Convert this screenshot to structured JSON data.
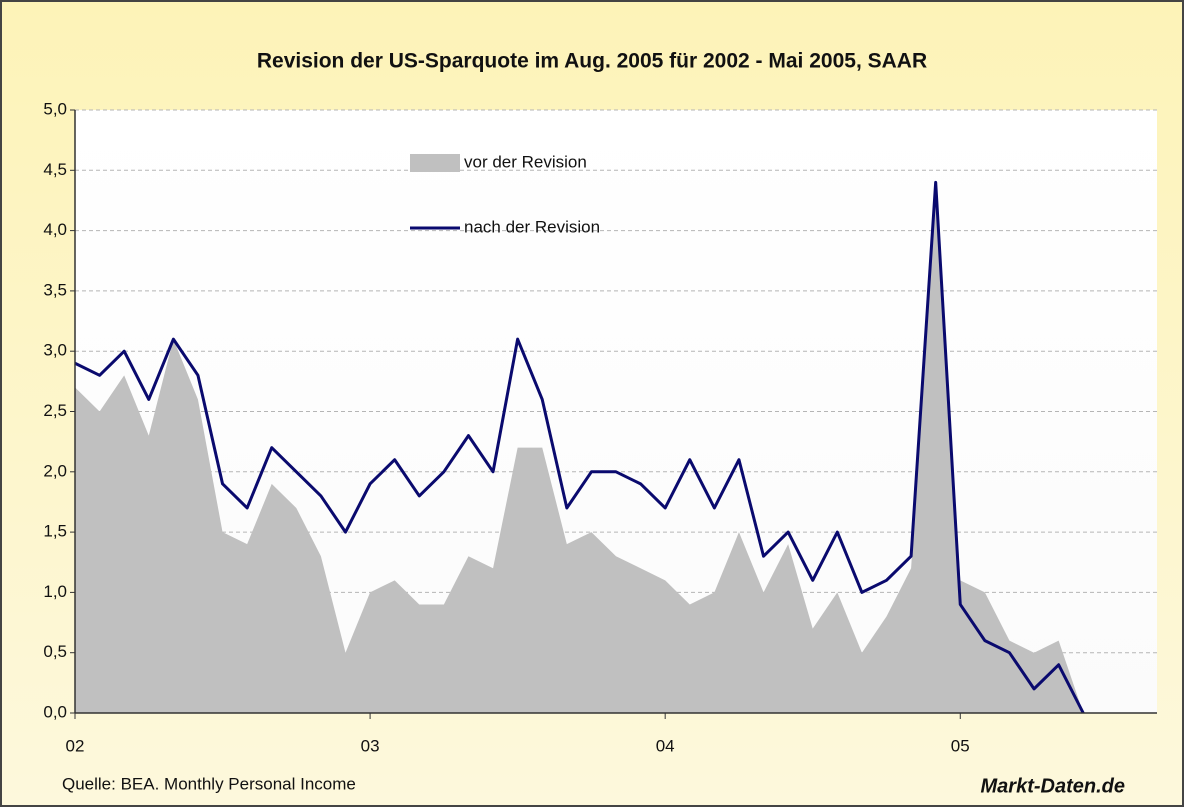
{
  "chart_data": {
    "type": "line",
    "title": "Revision der US-Sparquote im Aug. 2005 für 2002 - Mai 2005, SAAR",
    "source": "Quelle: BEA. Monthly Personal Income",
    "brand": "Markt-Daten.de",
    "categories": [
      "02",
      null,
      null,
      null,
      null,
      null,
      null,
      null,
      null,
      null,
      null,
      null,
      "03",
      null,
      null,
      null,
      null,
      null,
      null,
      null,
      null,
      null,
      null,
      null,
      "04",
      null,
      null,
      null,
      null,
      null,
      null,
      null,
      null,
      null,
      null,
      null,
      "05",
      null,
      null,
      null,
      null,
      null,
      null,
      null,
      null
    ],
    "series": [
      {
        "name": "vor der Revision",
        "type": "area",
        "color": "#c0c0c0",
        "values": [
          2.7,
          2.5,
          2.8,
          2.3,
          3.1,
          2.6,
          1.5,
          1.4,
          1.9,
          1.7,
          1.3,
          0.5,
          1.0,
          1.1,
          0.9,
          0.9,
          1.3,
          1.2,
          2.2,
          2.2,
          1.4,
          1.5,
          1.3,
          1.2,
          1.1,
          0.9,
          1.0,
          1.5,
          1.0,
          1.4,
          0.7,
          1.0,
          0.5,
          0.8,
          1.2,
          4.4,
          1.1,
          1.0,
          0.6,
          0.5,
          0.6,
          0.0,
          null,
          null,
          null
        ]
      },
      {
        "name": "nach der Revision",
        "type": "line",
        "color": "#0a0a6e",
        "values": [
          2.9,
          2.8,
          3.0,
          2.6,
          3.1,
          2.8,
          1.9,
          1.7,
          2.2,
          2.0,
          1.8,
          1.5,
          1.9,
          2.1,
          1.8,
          2.0,
          2.3,
          2.0,
          3.1,
          2.6,
          1.7,
          2.0,
          2.0,
          1.9,
          1.7,
          2.1,
          1.7,
          2.1,
          1.3,
          1.5,
          1.1,
          1.5,
          1.0,
          1.1,
          1.3,
          4.4,
          0.9,
          0.6,
          0.5,
          0.2,
          0.4,
          0.0,
          null,
          null,
          null
        ]
      }
    ],
    "ylim": [
      0,
      5
    ],
    "yticks": [
      {
        "value": 0,
        "label": "0,0"
      },
      {
        "value": 0.5,
        "label": "0,5"
      },
      {
        "value": 1,
        "label": "1,0"
      },
      {
        "value": 1.5,
        "label": "1,5"
      },
      {
        "value": 2,
        "label": "2,0"
      },
      {
        "value": 2.5,
        "label": "2,5"
      },
      {
        "value": 3,
        "label": "3,0"
      },
      {
        "value": 3.5,
        "label": "3,5"
      },
      {
        "value": 4,
        "label": "4,0"
      },
      {
        "value": 4.5,
        "label": "4,5"
      },
      {
        "value": 5,
        "label": "5,0"
      }
    ],
    "grid": true
  }
}
